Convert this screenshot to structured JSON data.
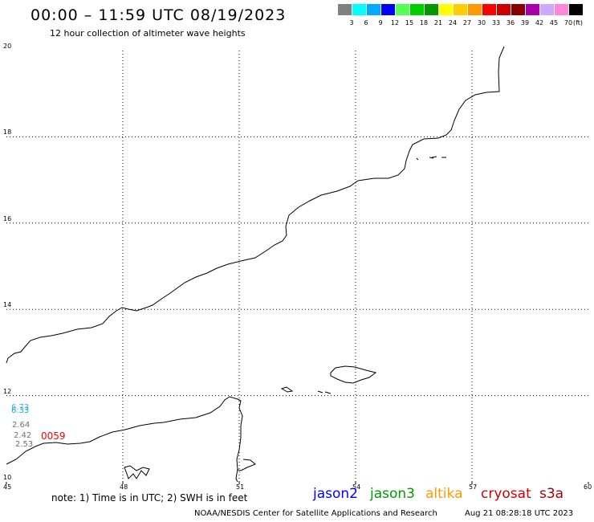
{
  "header": {
    "title": "00:00 – 11:59 UTC 08/19/2023",
    "subtitle": "12 hour collection of altimeter wave heights"
  },
  "color_scale": {
    "unit": "(ft)",
    "bins": [
      {
        "label": "3",
        "color": "#808080"
      },
      {
        "label": "6",
        "color": "#00ffff"
      },
      {
        "label": "9",
        "color": "#00aaff"
      },
      {
        "label": "12",
        "color": "#0000ff"
      },
      {
        "label": "15",
        "color": "#55ff55"
      },
      {
        "label": "18",
        "color": "#00cc00"
      },
      {
        "label": "21",
        "color": "#009900"
      },
      {
        "label": "24",
        "color": "#ffff00"
      },
      {
        "label": "27",
        "color": "#ffcc00"
      },
      {
        "label": "30",
        "color": "#ff9900"
      },
      {
        "label": "33",
        "color": "#ff0000"
      },
      {
        "label": "36",
        "color": "#cc0000"
      },
      {
        "label": "39",
        "color": "#880000"
      },
      {
        "label": "42",
        "color": "#aa00aa"
      },
      {
        "label": "45",
        "color": "#ccaaff"
      },
      {
        "label": "70",
        "color": "#ff88dd"
      },
      {
        "label": "",
        "color": "#000000"
      }
    ]
  },
  "map": {
    "lat_range": [
      10,
      20
    ],
    "lon_range": [
      45,
      60
    ],
    "lat_ticks": [
      "20",
      "18",
      "16",
      "14",
      "12",
      "10"
    ],
    "lon_ticks": [
      "45",
      "48",
      "51",
      "54",
      "57",
      "60"
    ],
    "gridlines": "dotted"
  },
  "observations": {
    "swh_values": [
      {
        "text": "6.73",
        "color": "#55aaff"
      },
      {
        "text": "6.33",
        "color": "#00bbbb"
      },
      {
        "text": "2.64",
        "color": "#707070"
      },
      {
        "text": "2.42",
        "color": "#707070"
      },
      {
        "text": "2.53",
        "color": "#707070"
      }
    ],
    "pass_id": "0059",
    "pass_color": "#ff0000"
  },
  "footer": {
    "note": "note:  1) Time is in UTC;  2) SWH is in feet",
    "satellites": [
      {
        "name": "jason2",
        "color": "#0000ff"
      },
      {
        "name": "jason3",
        "color": "#009900"
      },
      {
        "name": "altika",
        "color": "#ff9900"
      },
      {
        "name": "cryosat",
        "color": "#cc0000"
      },
      {
        "name": "s3a",
        "color": "#aa0000"
      }
    ],
    "credit": "NOAA/NESDIS Center for Satellite Applications and Research",
    "timestamp": "Aug 21 08:28:18 UTC 2023"
  }
}
